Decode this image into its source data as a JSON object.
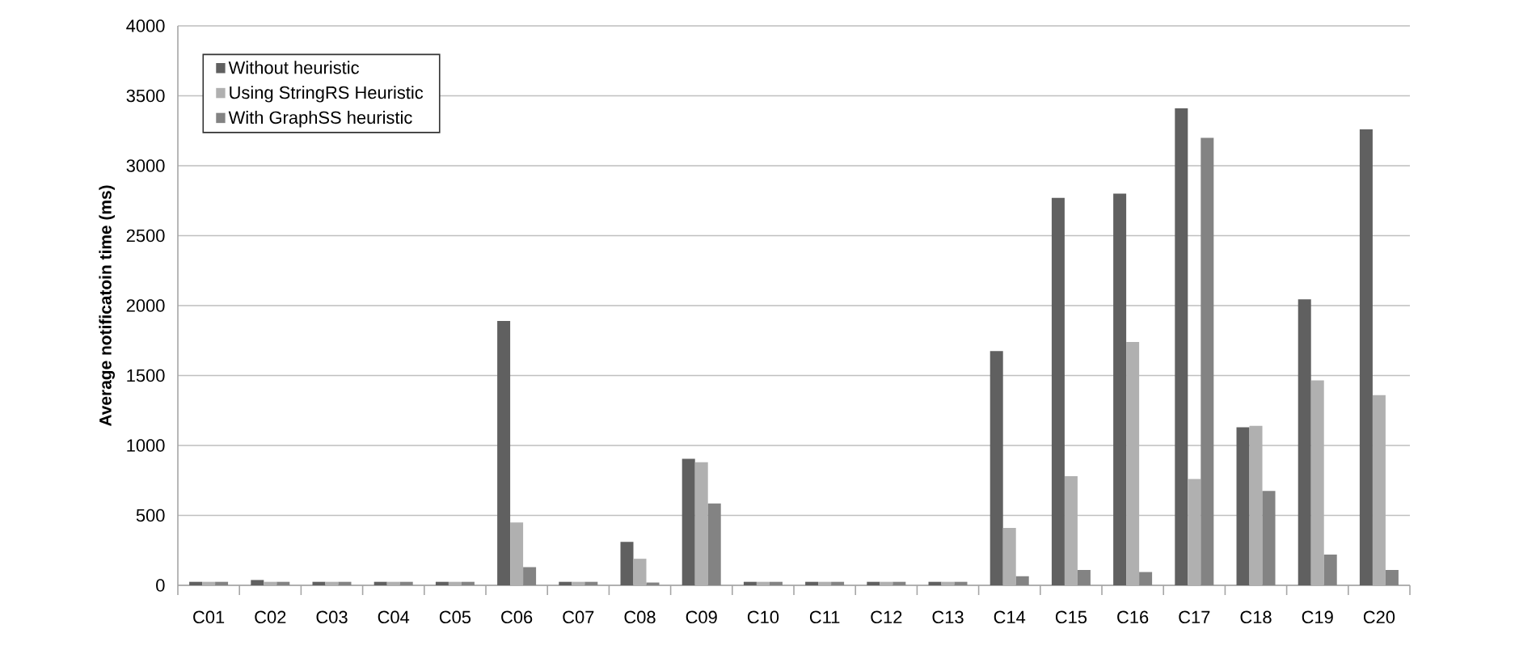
{
  "chart_data": {
    "type": "bar",
    "ylabel": "Average notificatoin time (ms)",
    "categories": [
      "C01",
      "C02",
      "C03",
      "C04",
      "C05",
      "C06",
      "C07",
      "C08",
      "C09",
      "C10",
      "C11",
      "C12",
      "C13",
      "C14",
      "C15",
      "C16",
      "C17",
      "C18",
      "C19",
      "C20"
    ],
    "series": [
      {
        "name": "Without heuristic",
        "color": "#606060",
        "values": [
          25,
          38,
          25,
          25,
          25,
          1890,
          25,
          310,
          905,
          25,
          25,
          25,
          25,
          1675,
          2770,
          2800,
          3410,
          1130,
          2045,
          3260
        ]
      },
      {
        "name": "Using StringRS Heuristic",
        "color": "#b0b0b0",
        "values": [
          25,
          25,
          25,
          25,
          25,
          450,
          25,
          190,
          880,
          25,
          25,
          25,
          25,
          410,
          780,
          1740,
          760,
          1140,
          1465,
          1360
        ]
      },
      {
        "name": "With GraphSS heuristic",
        "color": "#838383",
        "values": [
          25,
          25,
          25,
          25,
          25,
          130,
          25,
          20,
          585,
          25,
          25,
          25,
          25,
          65,
          110,
          95,
          3200,
          675,
          220,
          110
        ]
      }
    ],
    "ylim": [
      0,
      4000
    ],
    "yticks": [
      0,
      500,
      1000,
      1500,
      2000,
      2500,
      3000,
      3500,
      4000
    ],
    "grid": "y",
    "legend": "top left"
  }
}
